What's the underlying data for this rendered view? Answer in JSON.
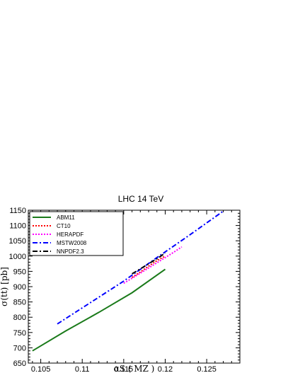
{
  "chart_data": {
    "type": "line",
    "title": "LHC 14 TeV",
    "xlabel": "αS ( MZ )",
    "ylabel": "σ(tt) [pb]",
    "xlim": [
      0.1035,
      0.129
    ],
    "ylim": [
      650,
      1150
    ],
    "xticks": [
      0.105,
      0.11,
      0.115,
      0.12,
      0.125
    ],
    "xtick_labels": [
      "0.105",
      "0.11",
      "0.115",
      "0.12",
      "0.125"
    ],
    "yticks": [
      650,
      700,
      750,
      800,
      850,
      900,
      950,
      1000,
      1050,
      1100,
      1150
    ],
    "ytick_labels": [
      "650",
      "700",
      "750",
      "800",
      "850",
      "900",
      "950",
      "1000",
      "1050",
      "1100",
      "1150"
    ],
    "grid": false,
    "legend_position": "top-left",
    "series": [
      {
        "name": "ABM11",
        "color": "#1a7a1a",
        "dash": "solid",
        "x": [
          0.104,
          0.108,
          0.112,
          0.116,
          0.12
        ],
        "y": [
          690,
          755,
          816,
          880,
          957
        ]
      },
      {
        "name": "CT10",
        "color": "#ff0000",
        "dash": "dot",
        "x": [
          0.116,
          0.117,
          0.118,
          0.119,
          0.12
        ],
        "y": [
          930,
          948,
          967,
          985,
          1000
        ]
      },
      {
        "name": "HERAPDF",
        "color": "#ff00ff",
        "dash": "dot",
        "x": [
          0.115,
          0.117,
          0.119,
          0.121,
          0.122
        ],
        "y": [
          911,
          944,
          978,
          1012,
          1030
        ]
      },
      {
        "name": "MSTW2008",
        "color": "#0000ff",
        "dash": "dashdot",
        "x": [
          0.107,
          0.111,
          0.115,
          0.119,
          0.123,
          0.127
        ],
        "y": [
          778,
          848,
          918,
          995,
          1070,
          1147
        ]
      },
      {
        "name": "NNPDF2.3",
        "color": "#000000",
        "dash": "dashdot",
        "x": [
          0.116,
          0.117,
          0.118,
          0.119,
          0.12
        ],
        "y": [
          942,
          958,
          975,
          991,
          1010
        ]
      }
    ]
  }
}
